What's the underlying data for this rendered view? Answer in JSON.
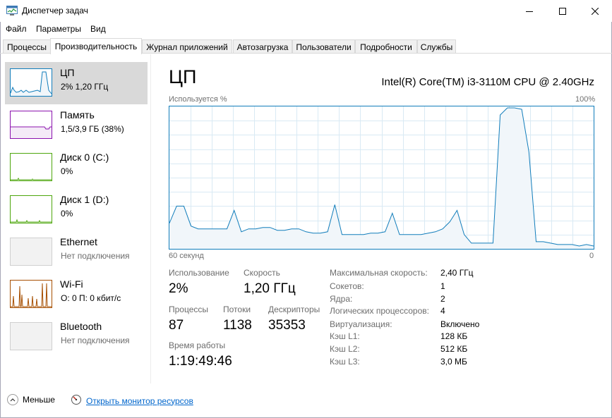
{
  "window": {
    "title": "Диспетчер задач"
  },
  "menu": [
    "Файл",
    "Параметры",
    "Вид"
  ],
  "tabs": [
    {
      "label": "Процессы",
      "active": false
    },
    {
      "label": "Производительность",
      "active": true
    },
    {
      "label": "Журнал приложений",
      "active": false
    },
    {
      "label": "Автозагрузка",
      "active": false
    },
    {
      "label": "Пользователи",
      "active": false
    },
    {
      "label": "Подробности",
      "active": false
    },
    {
      "label": "Службы",
      "active": false
    }
  ],
  "sidebar": [
    {
      "title": "ЦП",
      "subtitle": "2% 1,20 ГГц",
      "selected": true,
      "color": "#117dbb"
    },
    {
      "title": "Память",
      "subtitle": "1,5/3,9 ГБ (38%)",
      "selected": false,
      "color": "#8b12ae"
    },
    {
      "title": "Диск 0 (C:)",
      "subtitle": "0%",
      "selected": false,
      "color": "#4da60c"
    },
    {
      "title": "Диск 1 (D:)",
      "subtitle": "0%",
      "selected": false,
      "color": "#4da60c"
    },
    {
      "title": "Ethernet",
      "subtitle": "Нет подключения",
      "selected": false,
      "color": "#a74f01"
    },
    {
      "title": "Wi-Fi",
      "subtitle": "О: 0 П: 0 кбит/с",
      "selected": false,
      "color": "#a74f01"
    },
    {
      "title": "Bluetooth",
      "subtitle": "Нет подключения",
      "selected": false,
      "color": "#a74f01"
    }
  ],
  "main": {
    "title": "ЦП",
    "cpu_model": "Intel(R) Core(TM) i3-3110M CPU @ 2.40GHz",
    "graph_label": "Используется %",
    "graph_max": "100%",
    "graph_time": "60 секунд",
    "graph_min": "0",
    "graph_color": "#117dbb",
    "graph_fill": "#f1f6fa",
    "grid_color": "#d9eaf4",
    "cpu_usage_history": [
      18,
      30,
      30,
      16,
      14,
      14,
      14,
      14,
      14,
      27,
      12,
      14,
      14,
      15,
      15,
      13,
      13,
      14,
      14,
      12,
      11,
      11,
      12,
      31,
      10,
      10,
      10,
      10,
      11,
      11,
      12,
      25,
      10,
      10,
      10,
      10,
      11,
      12,
      14,
      19,
      27,
      10,
      4,
      4,
      4,
      4,
      94,
      99,
      99,
      98,
      68,
      5,
      5,
      4,
      3,
      3,
      3,
      2,
      3,
      2
    ],
    "stats": {
      "usage_label": "Использование",
      "usage_value": "2%",
      "speed_label": "Скорость",
      "speed_value": "1,20 ГГц",
      "processes_label": "Процессы",
      "processes_value": "87",
      "threads_label": "Потоки",
      "threads_value": "1138",
      "handles_label": "Дескрипторы",
      "handles_value": "35353",
      "uptime_label": "Время работы",
      "uptime_value": "1:19:49:46"
    },
    "details": [
      {
        "label": "Максимальная скорость:",
        "value": "2,40 ГГц"
      },
      {
        "label": "Сокетов:",
        "value": "1"
      },
      {
        "label": "Ядра:",
        "value": "2"
      },
      {
        "label": "Логических процессоров:",
        "value": "4"
      },
      {
        "label": "Виртуализация:",
        "value": "Включено"
      },
      {
        "label": "Кэш L1:",
        "value": "128 КБ"
      },
      {
        "label": "Кэш L2:",
        "value": "512 КБ"
      },
      {
        "label": "Кэш L3:",
        "value": "3,0 МБ"
      }
    ]
  },
  "footer": {
    "fewer_label": "Меньше",
    "monitor_label": "Открыть монитор ресурсов"
  }
}
